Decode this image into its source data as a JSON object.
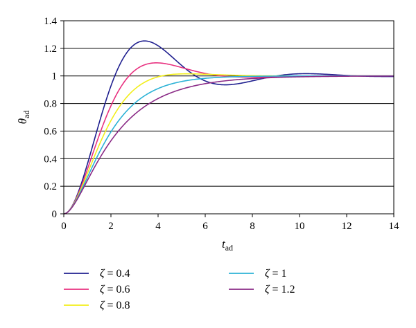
{
  "chart_data": {
    "type": "line",
    "xlabel": {
      "main": "t",
      "sub": "ad"
    },
    "ylabel": {
      "main": "θ",
      "sub": "ad"
    },
    "xlim": [
      0,
      14
    ],
    "ylim": [
      0,
      1.4
    ],
    "x_ticks": [
      "0",
      "2",
      "4",
      "6",
      "8",
      "10",
      "12",
      "14"
    ],
    "y_ticks": [
      "0",
      "0.2",
      "0.4",
      "0.6",
      "0.8",
      "1",
      "1.2",
      "1.4"
    ],
    "grid": "horizontal",
    "legend_position": "bottom",
    "series": [
      {
        "name": "ζ = 0.4",
        "zeta_symbol": "ζ",
        "zeta_value": "= 0.4",
        "damping": 0.4,
        "color": "#1f1f8f"
      },
      {
        "name": "ζ = 0.6",
        "zeta_symbol": "ζ",
        "zeta_value": "= 0.6",
        "damping": 0.6,
        "color": "#e8307f"
      },
      {
        "name": "ζ = 0.8",
        "zeta_symbol": "ζ",
        "zeta_value": "= 0.8",
        "damping": 0.8,
        "color": "#f2ee1a"
      },
      {
        "name": "ζ = 1",
        "zeta_symbol": "ζ",
        "zeta_value": "= 1",
        "damping": 1.0,
        "color": "#2bb2d6"
      },
      {
        "name": "ζ = 1.2",
        "zeta_symbol": "ζ",
        "zeta_value": "= 1.2",
        "damping": 1.2,
        "color": "#8a2a86"
      }
    ]
  }
}
